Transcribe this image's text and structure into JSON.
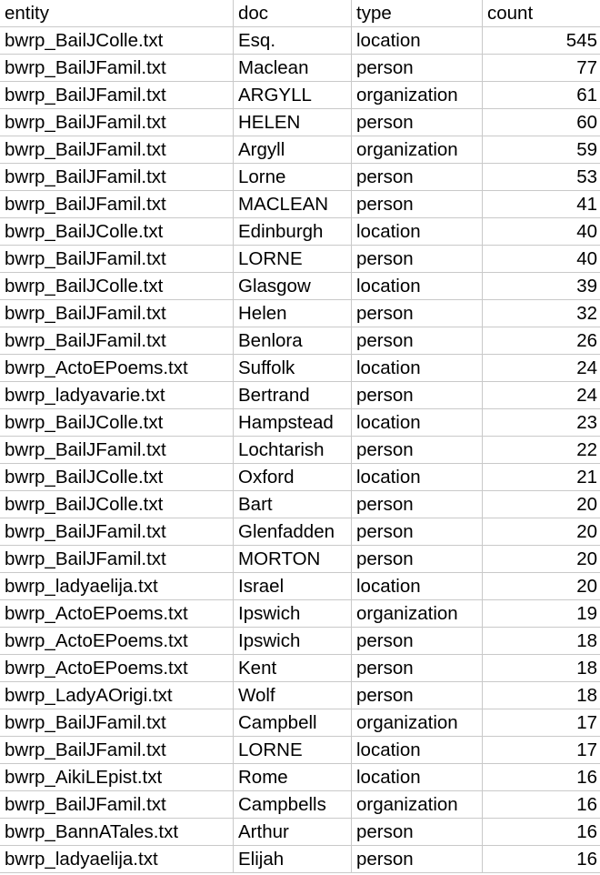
{
  "headers": {
    "entity": "entity",
    "doc": "doc",
    "type": "type",
    "count": "count"
  },
  "rows": [
    {
      "entity": "bwrp_BailJColle.txt",
      "doc": "Esq.",
      "type": "location",
      "count": "545"
    },
    {
      "entity": "bwrp_BailJFamil.txt",
      "doc": "Maclean",
      "type": "person",
      "count": "77"
    },
    {
      "entity": "bwrp_BailJFamil.txt",
      "doc": "ARGYLL",
      "type": "organization",
      "count": "61"
    },
    {
      "entity": "bwrp_BailJFamil.txt",
      "doc": "HELEN",
      "type": "person",
      "count": "60"
    },
    {
      "entity": "bwrp_BailJFamil.txt",
      "doc": "Argyll",
      "type": "organization",
      "count": "59"
    },
    {
      "entity": "bwrp_BailJFamil.txt",
      "doc": "Lorne",
      "type": "person",
      "count": "53"
    },
    {
      "entity": "bwrp_BailJFamil.txt",
      "doc": "MACLEAN",
      "type": "person",
      "count": "41"
    },
    {
      "entity": "bwrp_BailJColle.txt",
      "doc": "Edinburgh",
      "type": "location",
      "count": "40"
    },
    {
      "entity": "bwrp_BailJFamil.txt",
      "doc": "LORNE",
      "type": "person",
      "count": "40"
    },
    {
      "entity": "bwrp_BailJColle.txt",
      "doc": "Glasgow",
      "type": "location",
      "count": "39"
    },
    {
      "entity": "bwrp_BailJFamil.txt",
      "doc": "Helen",
      "type": "person",
      "count": "32"
    },
    {
      "entity": "bwrp_BailJFamil.txt",
      "doc": "Benlora",
      "type": "person",
      "count": "26"
    },
    {
      "entity": "bwrp_ActoEPoems.txt",
      "doc": "Suffolk",
      "type": "location",
      "count": "24"
    },
    {
      "entity": "bwrp_ladyavarie.txt",
      "doc": "Bertrand",
      "type": "person",
      "count": "24"
    },
    {
      "entity": "bwrp_BailJColle.txt",
      "doc": "Hampstead",
      "type": "location",
      "count": "23"
    },
    {
      "entity": "bwrp_BailJFamil.txt",
      "doc": "Lochtarish",
      "type": "person",
      "count": "22"
    },
    {
      "entity": "bwrp_BailJColle.txt",
      "doc": "Oxford",
      "type": "location",
      "count": "21"
    },
    {
      "entity": "bwrp_BailJColle.txt",
      "doc": "Bart",
      "type": "person",
      "count": "20"
    },
    {
      "entity": "bwrp_BailJFamil.txt",
      "doc": "Glenfadden",
      "type": "person",
      "count": "20"
    },
    {
      "entity": "bwrp_BailJFamil.txt",
      "doc": "MORTON",
      "type": "person",
      "count": "20"
    },
    {
      "entity": "bwrp_ladyaelija.txt",
      "doc": "Israel",
      "type": "location",
      "count": "20"
    },
    {
      "entity": "bwrp_ActoEPoems.txt",
      "doc": "Ipswich",
      "type": "organization",
      "count": "19"
    },
    {
      "entity": "bwrp_ActoEPoems.txt",
      "doc": "Ipswich",
      "type": "person",
      "count": "18"
    },
    {
      "entity": "bwrp_ActoEPoems.txt",
      "doc": "Kent",
      "type": "person",
      "count": "18"
    },
    {
      "entity": "bwrp_LadyAOrigi.txt",
      "doc": "Wolf",
      "type": "person",
      "count": "18"
    },
    {
      "entity": "bwrp_BailJFamil.txt",
      "doc": "Campbell",
      "type": "organization",
      "count": "17"
    },
    {
      "entity": "bwrp_BailJFamil.txt",
      "doc": "LORNE",
      "type": "location",
      "count": "17"
    },
    {
      "entity": "bwrp_AikiLEpist.txt",
      "doc": "Rome",
      "type": "location",
      "count": "16"
    },
    {
      "entity": "bwrp_BailJFamil.txt",
      "doc": "Campbells",
      "type": "organization",
      "count": "16"
    },
    {
      "entity": "bwrp_BannATales.txt",
      "doc": "Arthur",
      "type": "person",
      "count": "16"
    },
    {
      "entity": "bwrp_ladyaelija.txt",
      "doc": "Elijah",
      "type": "person",
      "count": "16"
    }
  ]
}
